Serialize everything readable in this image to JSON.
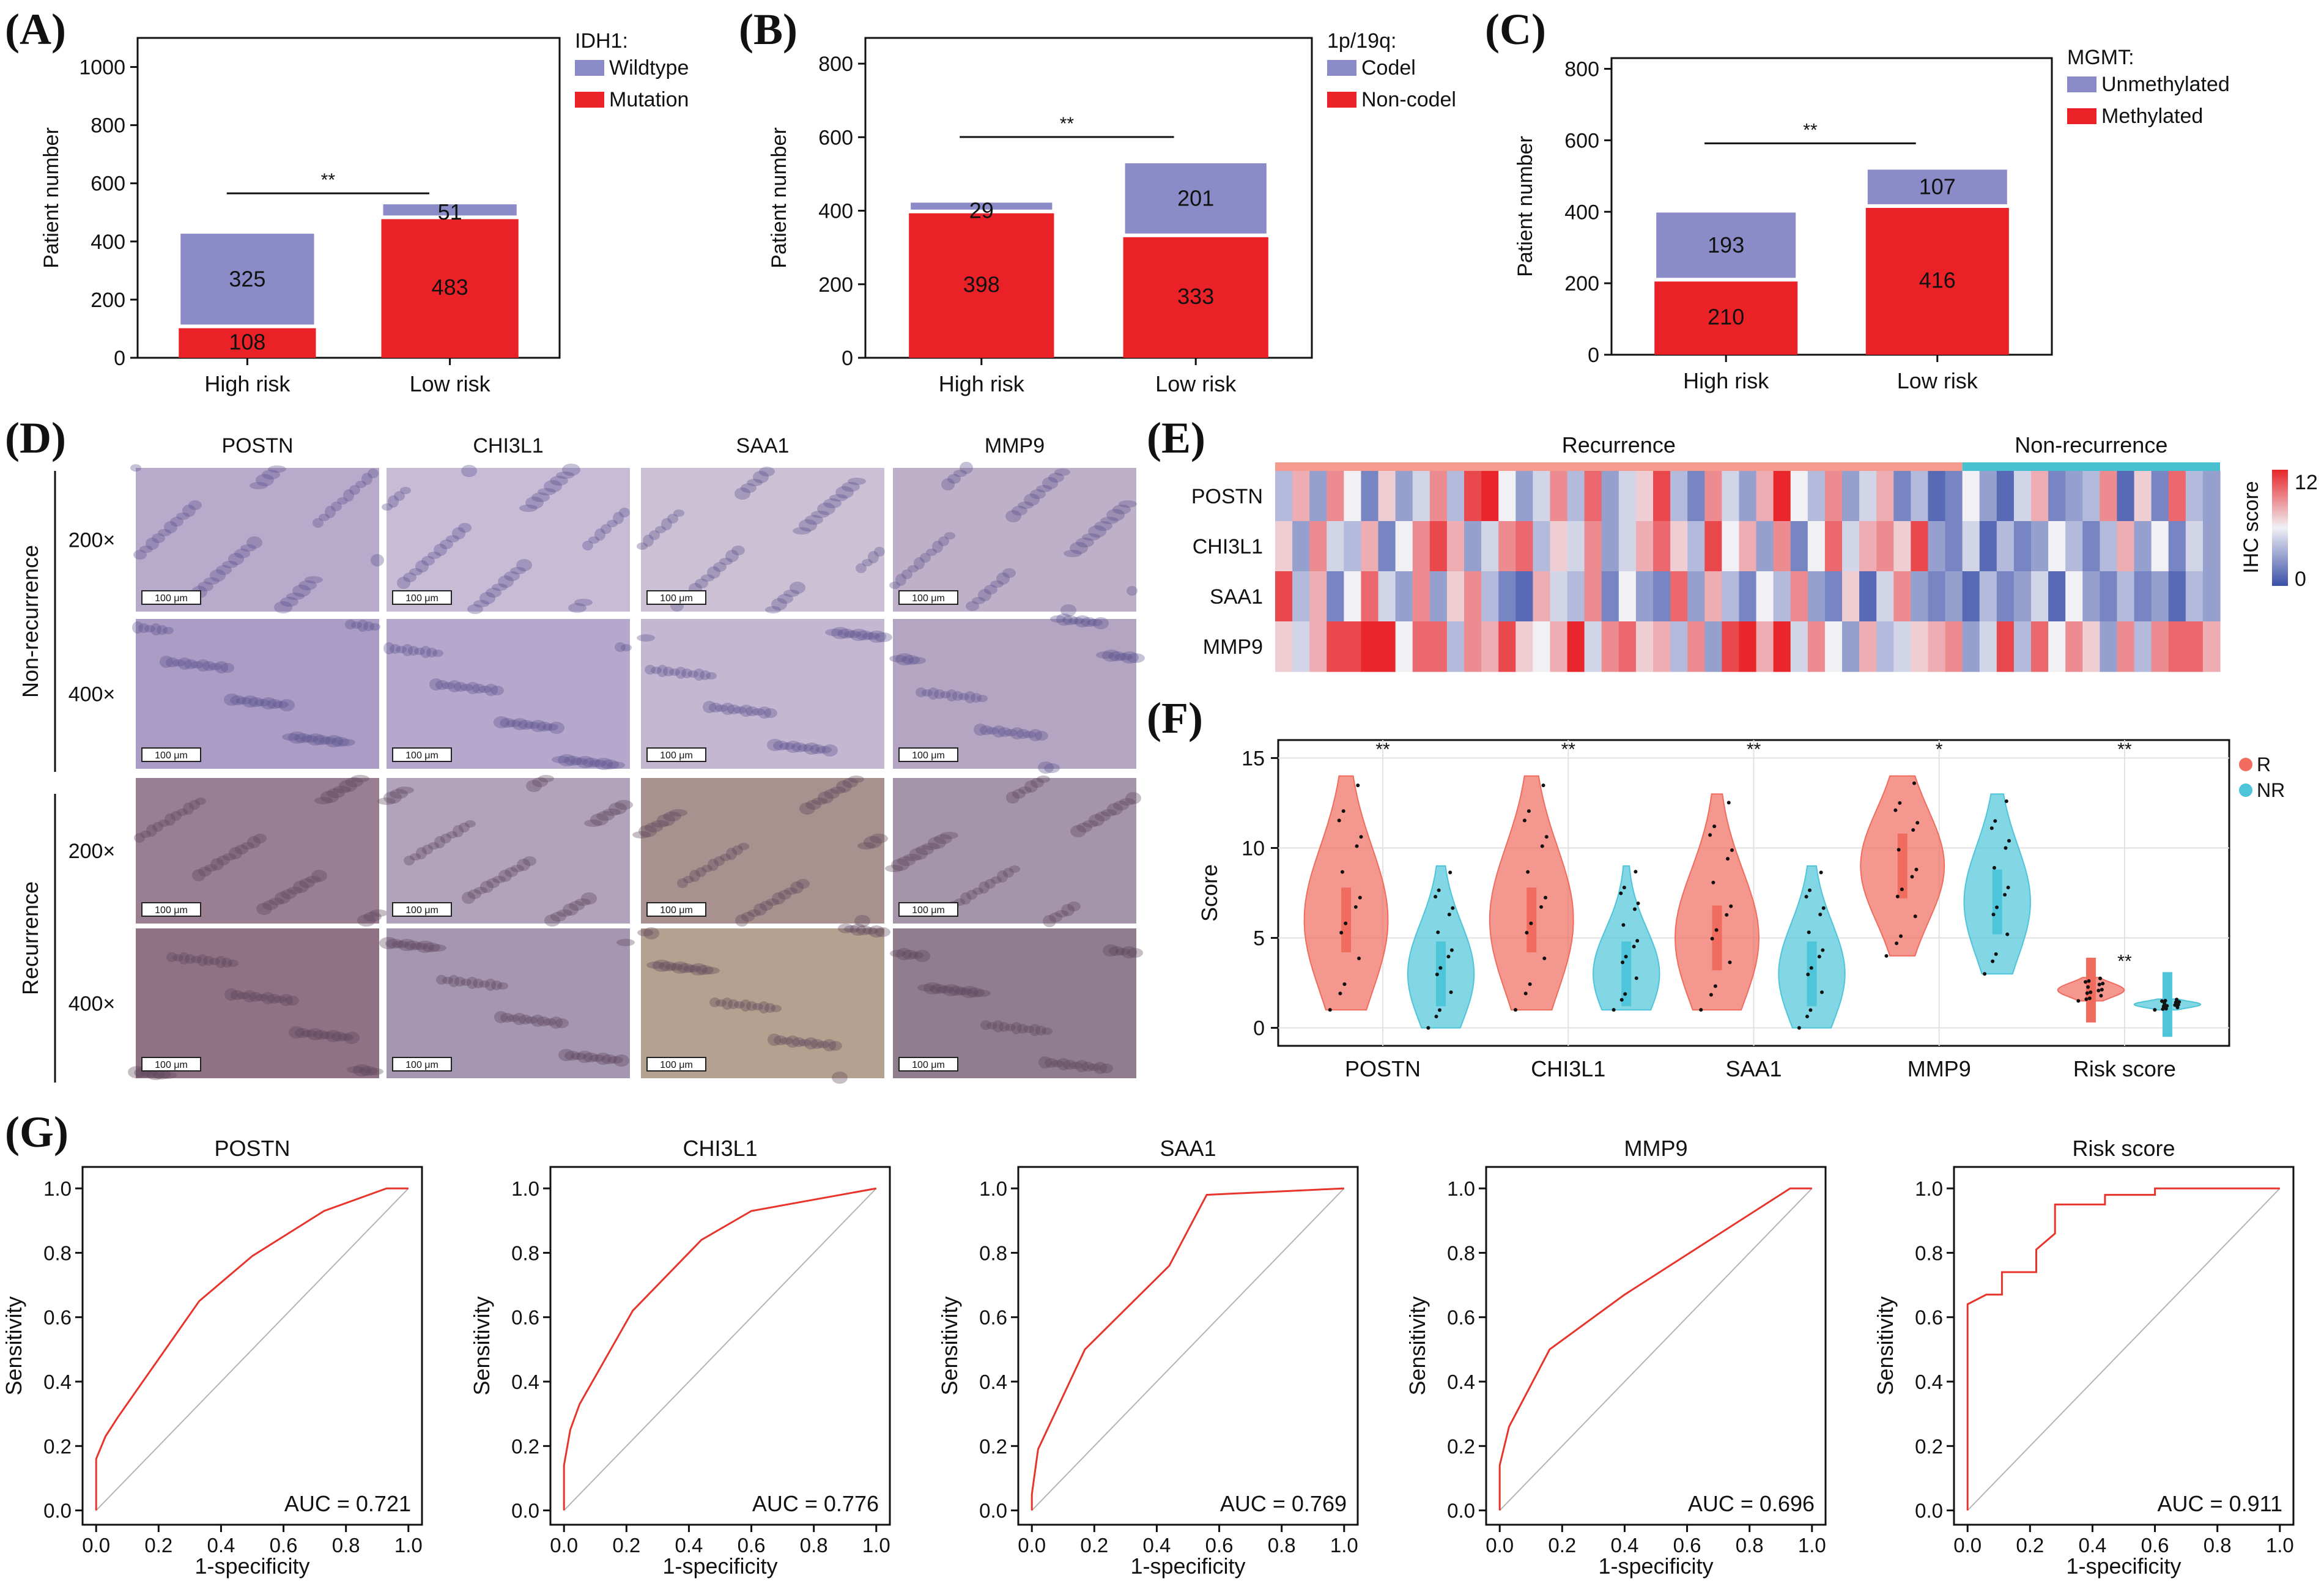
{
  "colors": {
    "purple": "#8b8bc8",
    "red": "#ea2227",
    "violin_r": "#f06c5f",
    "violin_nr": "#4ec5d9",
    "roc": "#e8352c",
    "heat_low": "#3a4fa8",
    "heat_high": "#e8262b",
    "bar_rec": "#f59a8f",
    "bar_nonrec": "#49c0cf"
  },
  "panels": {
    "a": "(A)",
    "b": "(B)",
    "c": "(C)",
    "d": "(D)",
    "e": "(E)",
    "f": "(F)",
    "g": "(G)"
  },
  "chart_data": [
    {
      "id": "A",
      "type": "bar",
      "stacked": true,
      "title": "IDH1:",
      "categories": [
        "High risk",
        "Low risk"
      ],
      "series": [
        {
          "name": "Mutation",
          "color": "#ea2227",
          "values": [
            108,
            483
          ]
        },
        {
          "name": "Wildtype",
          "color": "#8b8bc8",
          "values": [
            325,
            51
          ]
        }
      ],
      "ylabel": "Patient number",
      "ylim": [
        0,
        1100
      ],
      "yticks": [
        0,
        200,
        400,
        600,
        800,
        1000
      ],
      "sig": "**"
    },
    {
      "id": "B",
      "type": "bar",
      "stacked": true,
      "title": "1p/19q:",
      "categories": [
        "High risk",
        "Low risk"
      ],
      "series": [
        {
          "name": "Non-codel",
          "color": "#ea2227",
          "values": [
            398,
            333
          ]
        },
        {
          "name": "Codel",
          "color": "#8b8bc8",
          "values": [
            29,
            201
          ]
        }
      ],
      "ylabel": "Patient number",
      "ylim": [
        0,
        870
      ],
      "yticks": [
        0,
        200,
        400,
        600,
        800
      ],
      "sig": "**"
    },
    {
      "id": "C",
      "type": "bar",
      "stacked": true,
      "title": "MGMT:",
      "categories": [
        "High risk",
        "Low risk"
      ],
      "series": [
        {
          "name": "Methylated",
          "color": "#ea2227",
          "values": [
            210,
            416
          ]
        },
        {
          "name": "Unmethylated",
          "color": "#8b8bc8",
          "values": [
            193,
            107
          ]
        }
      ],
      "ylabel": "Patient number",
      "ylim": [
        0,
        830
      ],
      "yticks": [
        0,
        200,
        400,
        600,
        800
      ],
      "sig": "**"
    },
    {
      "id": "E",
      "type": "heatmap",
      "groups": [
        "Recurrence",
        "Non-recurrence"
      ],
      "rows": [
        "POSTN",
        "CHI3L1",
        "SAA1",
        "MMP9"
      ],
      "legend_label": "IHC score",
      "legend_max": "12",
      "legend_min": "0",
      "values": [
        [
          4,
          8,
          3,
          9,
          6,
          2,
          7,
          3,
          5,
          9,
          4,
          11,
          12,
          6,
          3,
          5,
          9,
          4,
          10,
          3,
          5,
          7,
          11,
          4,
          2,
          9,
          5,
          3,
          8,
          12,
          6,
          4,
          9,
          3,
          5,
          8,
          2,
          4,
          1,
          2,
          6,
          3,
          1,
          5,
          8,
          2,
          3,
          4,
          9,
          1,
          7,
          2,
          10,
          4,
          3
        ],
        [
          7,
          3,
          9,
          5,
          4,
          8,
          2,
          6,
          9,
          11,
          8,
          3,
          5,
          9,
          10,
          4,
          7,
          5,
          9,
          3,
          5,
          8,
          10,
          7,
          4,
          11,
          6,
          8,
          3,
          9,
          2,
          6,
          10,
          5,
          8,
          9,
          7,
          11,
          3,
          2,
          5,
          1,
          4,
          2,
          3,
          6,
          4,
          2,
          4,
          8,
          3,
          6,
          2,
          5,
          3
        ],
        [
          11,
          4,
          8,
          2,
          6,
          10,
          5,
          3,
          9,
          3,
          7,
          9,
          4,
          2,
          1,
          8,
          5,
          4,
          9,
          2,
          6,
          3,
          2,
          10,
          3,
          8,
          4,
          2,
          6,
          4,
          9,
          3,
          2,
          7,
          1,
          5,
          9,
          3,
          2,
          3,
          1,
          4,
          2,
          3,
          5,
          1,
          6,
          3,
          2,
          4,
          2,
          3,
          1,
          4,
          3
        ],
        [
          7,
          5,
          8,
          11,
          11,
          12,
          12,
          6,
          10,
          10,
          4,
          9,
          8,
          11,
          7,
          6,
          8,
          12,
          5,
          9,
          10,
          7,
          8,
          4,
          9,
          3,
          11,
          12,
          8,
          12,
          5,
          9,
          6,
          3,
          8,
          4,
          5,
          7,
          8,
          9,
          3,
          5,
          11,
          4,
          10,
          6,
          9,
          7,
          3,
          9,
          4,
          9,
          10,
          10,
          8
        ]
      ],
      "n_recurrence": 40,
      "n_nonrecurrence": 15
    },
    {
      "id": "F",
      "type": "violin",
      "ylabel": "Score",
      "ylim": [
        -1,
        16
      ],
      "yticks": [
        0,
        5,
        10,
        15
      ],
      "categories": [
        "POSTN",
        "CHI3L1",
        "SAA1",
        "MMP9",
        "Risk score"
      ],
      "series": [
        {
          "name": "R",
          "median": [
            6,
            6,
            5,
            9,
            2.1
          ],
          "range": [
            1,
            1,
            1,
            4,
            1.5
          ]
        },
        {
          "name": "NR",
          "median": [
            3,
            3,
            3,
            7,
            1.3
          ],
          "range": [
            0,
            1,
            0,
            3,
            1
          ]
        }
      ],
      "sig": [
        "**",
        "**",
        "**",
        "*",
        "**"
      ],
      "legend": [
        "R",
        "NR"
      ]
    },
    {
      "id": "G",
      "type": "line",
      "subtype": "roc",
      "xlabel": "1-specificity",
      "ylabel": "Sensitivity",
      "xlim": [
        0,
        1
      ],
      "ylim": [
        0,
        1
      ],
      "ticks": [
        "0.0",
        "0.2",
        "0.4",
        "0.6",
        "0.8",
        "1.0"
      ],
      "plots": [
        {
          "title": "POSTN",
          "auc_label": "AUC = 0.721",
          "x": [
            0,
            0,
            0.03,
            0.07,
            0.33,
            0.5,
            0.73,
            0.93,
            1.0
          ],
          "y": [
            0,
            0.16,
            0.23,
            0.29,
            0.65,
            0.79,
            0.93,
            1.0,
            1.0
          ]
        },
        {
          "title": "CHI3L1",
          "auc_label": "AUC = 0.776",
          "x": [
            0,
            0,
            0.02,
            0.05,
            0.22,
            0.44,
            0.6,
            1.0
          ],
          "y": [
            0,
            0.14,
            0.25,
            0.33,
            0.62,
            0.84,
            0.93,
            1.0
          ]
        },
        {
          "title": "SAA1",
          "auc_label": "AUC = 0.769",
          "x": [
            0,
            0,
            0.02,
            0.17,
            0.44,
            0.56,
            1.0
          ],
          "y": [
            0,
            0.05,
            0.19,
            0.5,
            0.76,
            0.98,
            1.0
          ]
        },
        {
          "title": "MMP9",
          "auc_label": "AUC = 0.696",
          "x": [
            0,
            0,
            0.03,
            0.16,
            0.4,
            0.93,
            1.0
          ],
          "y": [
            0,
            0.14,
            0.26,
            0.5,
            0.67,
            1.0,
            1.0
          ]
        },
        {
          "title": "Risk score",
          "auc_label": "AUC = 0.911",
          "x": [
            0,
            0,
            0.06,
            0.06,
            0.11,
            0.11,
            0.22,
            0.22,
            0.28,
            0.28,
            0.44,
            0.44,
            0.6,
            0.6,
            1.0
          ],
          "y": [
            0,
            0.64,
            0.67,
            0.67,
            0.67,
            0.74,
            0.74,
            0.81,
            0.86,
            0.95,
            0.95,
            0.98,
            0.98,
            1.0,
            1.0
          ]
        }
      ]
    }
  ],
  "ihc": {
    "columns": [
      "POSTN",
      "CHI3L1",
      "SAA1",
      "MMP9"
    ],
    "groups": [
      "Non-recurrence",
      "Recurrence"
    ],
    "mags": [
      "200×",
      "400×"
    ],
    "scalebar": "100 μm"
  }
}
